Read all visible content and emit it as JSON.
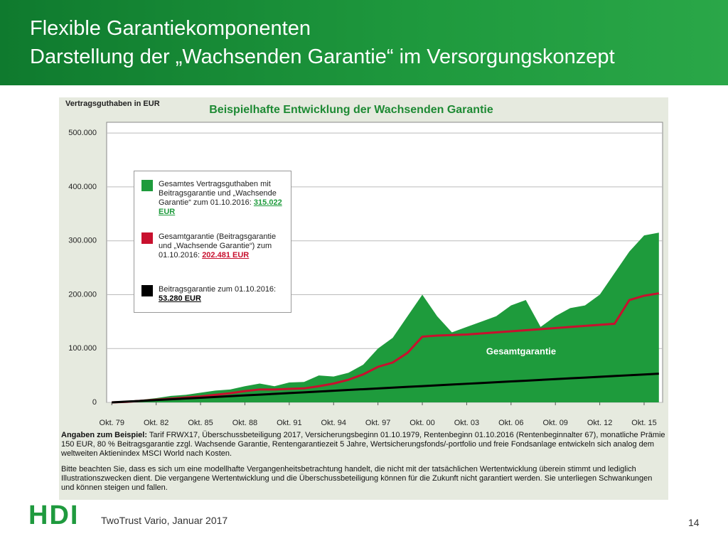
{
  "header": {
    "title": "Flexible Garantiekomponenten",
    "subtitle": "Darstellung der „Wachsenden Garantie“ im Versorgungskonzept"
  },
  "chart_data": {
    "type": "area",
    "title": "Beispielhafte Entwicklung der Wachsenden Garantie",
    "y_label": "Vertragsguthaben in EUR",
    "x": [
      1979.75,
      1980.75,
      1981.75,
      1982.75,
      1983.75,
      1984.75,
      1985.75,
      1986.75,
      1987.75,
      1988.75,
      1989.75,
      1990.75,
      1991.75,
      1992.75,
      1993.75,
      1994.75,
      1995.75,
      1996.75,
      1997.75,
      1998.75,
      1999.75,
      2000.75,
      2001.75,
      2002.75,
      2003.75,
      2004.75,
      2005.75,
      2006.75,
      2007.75,
      2008.75,
      2009.75,
      2010.75,
      2011.75,
      2012.75,
      2013.75,
      2014.75,
      2015.75,
      2016.75
    ],
    "series": [
      {
        "name": "Gesamtes Vertragsguthaben mit Beitragsgarantie und „Wachsende Garantie“ zum 01.10.2016:",
        "end_label": "315.022 EUR",
        "color": "#1e9b3c",
        "style": "area",
        "values": [
          0,
          3000,
          5000,
          8000,
          12000,
          14000,
          18000,
          22000,
          24000,
          30000,
          35000,
          30000,
          37000,
          38000,
          50000,
          48000,
          55000,
          70000,
          100000,
          120000,
          160000,
          200000,
          160000,
          130000,
          140000,
          150000,
          160000,
          180000,
          190000,
          140000,
          160000,
          175000,
          180000,
          200000,
          240000,
          280000,
          310000,
          315022
        ]
      },
      {
        "name": "Gesamtgarantie (Beitragsgarantie und „Wachsende Garantie“) zum 01.10.2016:",
        "end_label": "202.481 EUR",
        "color": "#c8102e",
        "style": "line",
        "values": [
          0,
          1000,
          3000,
          5000,
          7000,
          9000,
          11000,
          14000,
          17000,
          21000,
          24000,
          24000,
          25000,
          26000,
          30000,
          35000,
          42000,
          52000,
          66000,
          74000,
          92000,
          122000,
          124000,
          125000,
          126000,
          128000,
          130000,
          132000,
          134000,
          136000,
          138000,
          140000,
          142000,
          144000,
          146000,
          190000,
          198000,
          202481
        ]
      },
      {
        "name": "Beitragsgarantie zum 01.10.2016:",
        "end_label": "53.280 EUR",
        "color": "#000000",
        "style": "line",
        "values": [
          0,
          1440,
          2880,
          4320,
          5760,
          7200,
          8640,
          10080,
          11520,
          12960,
          14400,
          15840,
          17280,
          18720,
          20160,
          21600,
          23040,
          24480,
          25920,
          27360,
          28800,
          30240,
          31680,
          33120,
          34560,
          36000,
          37440,
          38880,
          40320,
          41760,
          43200,
          44640,
          46080,
          47520,
          48960,
          50400,
          51840,
          53280
        ]
      }
    ],
    "annotation": "Gesamtgarantie",
    "xlim": [
      1979.4,
      2017
    ],
    "ylim": [
      0,
      520000
    ],
    "xticks": [
      {
        "value": 1979.75,
        "label": "Okt. 79"
      },
      {
        "value": 1982.75,
        "label": "Okt. 82"
      },
      {
        "value": 1985.75,
        "label": "Okt. 85"
      },
      {
        "value": 1988.75,
        "label": "Okt. 88"
      },
      {
        "value": 1991.75,
        "label": "Okt. 91"
      },
      {
        "value": 1994.75,
        "label": "Okt. 94"
      },
      {
        "value": 1997.75,
        "label": "Okt. 97"
      },
      {
        "value": 2000.75,
        "label": "Okt. 00"
      },
      {
        "value": 2003.75,
        "label": "Okt. 03"
      },
      {
        "value": 2006.75,
        "label": "Okt. 06"
      },
      {
        "value": 2009.75,
        "label": "Okt. 09"
      },
      {
        "value": 2012.75,
        "label": "Okt. 12"
      },
      {
        "value": 2015.75,
        "label": "Okt. 15"
      }
    ],
    "yticks": [
      0,
      {
        "value": 100000,
        "label": "100.000"
      },
      {
        "value": 200000,
        "label": "200.000"
      },
      {
        "value": 300000,
        "label": "300.000"
      },
      {
        "value": 400000,
        "label": "400.000"
      },
      {
        "value": 500000,
        "label": "500.000"
      }
    ],
    "grid": true
  },
  "notes": {
    "lead": "Angaben zum Beispiel:",
    "details": "Tarif FRWX17, Überschussbeteiligung 2017, Versicherungsbeginn 01.10.1979, Rentenbeginn 01.10.2016 (Rentenbeginnalter 67), monatliche Prämie 150 EUR, 80 % Beitragsgarantie zzgl. Wachsende Garantie, Rentengarantiezeit 5 Jahre, Wertsicherungsfonds/-portfolio und freie Fondsanlage entwickeln sich analog dem weltweiten Aktienindex MSCI World nach Kosten.",
    "disclaimer": "Bitte beachten Sie, dass es sich um eine modellhafte Vergangenheitsbetrachtung handelt, die nicht mit der tatsächlichen Wertentwicklung überein stimmt und lediglich Illustrationszwecken dient. Die vergangene Wertentwicklung und die Überschussbeteiligung können für die Zukunft nicht garantiert werden. Sie unterliegen Schwankungen und können steigen und fallen."
  },
  "footer": {
    "logo": "HDI",
    "text": "TwoTrust Vario, Januar 2017",
    "page": "14"
  }
}
